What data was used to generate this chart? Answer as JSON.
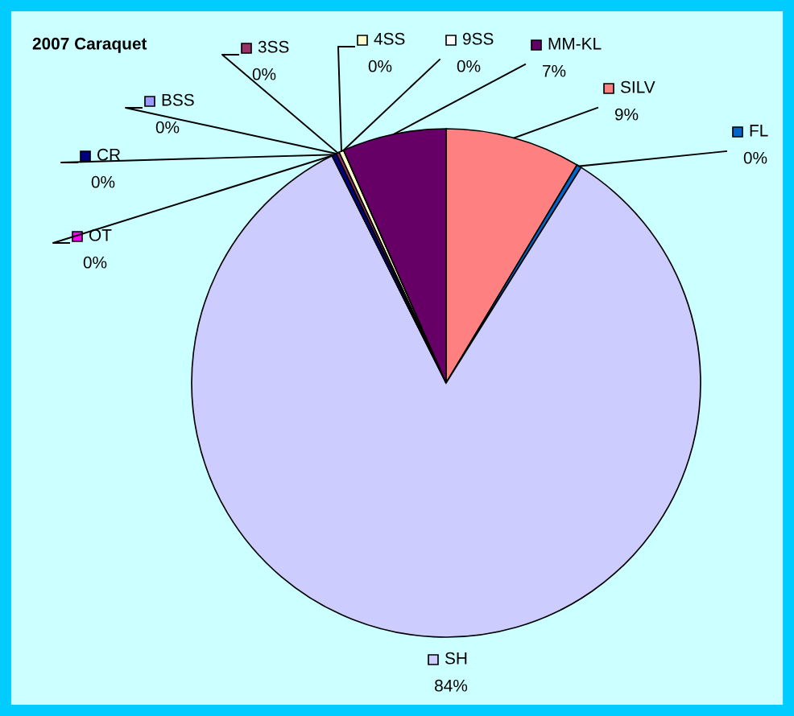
{
  "chart_data": {
    "type": "pie",
    "title": "2007 Caraquet",
    "categories": [
      "SILV",
      "FL",
      "SH",
      "OT",
      "CR",
      "BSS",
      "3SS",
      "4SS",
      "9SS",
      "MM-KL"
    ],
    "values": [
      8.6,
      0.3,
      83.7,
      0,
      0.3,
      0,
      0.2,
      0.3,
      0,
      6.6
    ],
    "legend": "top",
    "value_labels": [
      "9%",
      "0%",
      "84%",
      "0%",
      "0%",
      "0%",
      "0%",
      "0%",
      "0%",
      "7%"
    ],
    "colors": [
      "#ff8080",
      "#0066cc",
      "#ccccff",
      "#ff00ff",
      "#000080",
      "#9999ff",
      "#993366",
      "#ffffcc",
      "#ffffff",
      "#660066"
    ]
  }
}
